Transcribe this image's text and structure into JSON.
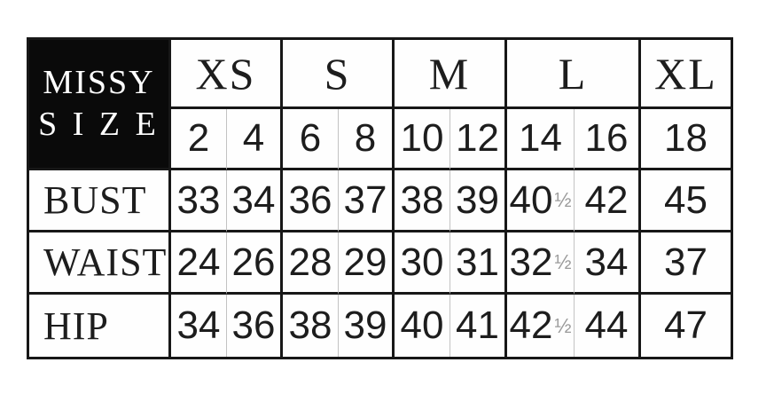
{
  "colors": {
    "background": "#ffffff",
    "grid_line": "#171717",
    "thin_divider": "#c3c3c3",
    "title_cell_bg": "#0a0a0a",
    "title_cell_text": "#ffffff",
    "fraction_text": "#9a9a9a"
  },
  "corner": {
    "line1": "MISSY",
    "line2": "S I Z E"
  },
  "size_groups": [
    {
      "label": "XS",
      "sizes": [
        "2",
        "4"
      ]
    },
    {
      "label": "S",
      "sizes": [
        "6",
        "8"
      ]
    },
    {
      "label": "M",
      "sizes": [
        "10",
        "12"
      ]
    },
    {
      "label": "L",
      "sizes": [
        "14",
        "16"
      ]
    },
    {
      "label": "XL",
      "sizes": [
        "18"
      ]
    }
  ],
  "rows": [
    {
      "label": "BUST",
      "values": [
        "33",
        "34",
        "36",
        "37",
        "38",
        "39",
        "40½",
        "42",
        "45"
      ]
    },
    {
      "label": "WAIST",
      "values": [
        "24",
        "26",
        "28",
        "29",
        "30",
        "31",
        "32½",
        "34",
        "37"
      ]
    },
    {
      "label": "HIP",
      "values": [
        "34",
        "36",
        "38",
        "39",
        "40",
        "41",
        "42½",
        "44",
        "47"
      ]
    }
  ],
  "chart_data": {
    "type": "table",
    "title": "MISSY SIZE",
    "size_groups": [
      {
        "label": "XS",
        "sizes": [
          2,
          4
        ]
      },
      {
        "label": "S",
        "sizes": [
          6,
          8
        ]
      },
      {
        "label": "M",
        "sizes": [
          10,
          12
        ]
      },
      {
        "label": "L",
        "sizes": [
          14,
          16
        ]
      },
      {
        "label": "XL",
        "sizes": [
          18
        ]
      }
    ],
    "sizes": [
      2,
      4,
      6,
      8,
      10,
      12,
      14,
      16,
      18
    ],
    "measurements": [
      {
        "label": "BUST",
        "values": [
          33,
          34,
          36,
          37,
          38,
          39,
          40.5,
          42,
          45
        ]
      },
      {
        "label": "WAIST",
        "values": [
          24,
          26,
          28,
          29,
          30,
          31,
          32.5,
          34,
          37
        ]
      },
      {
        "label": "HIP",
        "values": [
          34,
          36,
          38,
          39,
          40,
          41,
          42.5,
          44,
          47
        ]
      }
    ]
  }
}
